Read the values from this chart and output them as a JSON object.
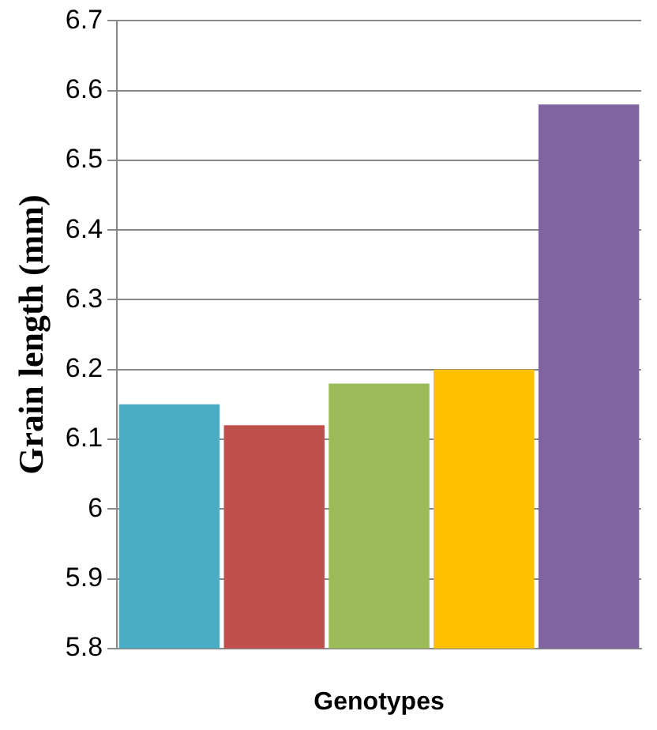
{
  "chart_data": {
    "type": "bar",
    "xlabel": "Genotypes",
    "ylabel": "Grain length (mm)",
    "categories": [
      null,
      null,
      null,
      null,
      null
    ],
    "values": [
      6.15,
      6.12,
      6.18,
      6.2,
      6.58
    ],
    "colors": [
      "#4bacc6",
      "#c0504d",
      "#9bbb59",
      "#ffc000",
      "#8064a2"
    ],
    "ylim": [
      5.8,
      6.7
    ],
    "yticks": [
      5.8,
      5.9,
      6,
      6.1,
      6.2,
      6.3,
      6.4,
      6.5,
      6.6,
      6.7
    ],
    "grid": "y",
    "legend": false
  }
}
